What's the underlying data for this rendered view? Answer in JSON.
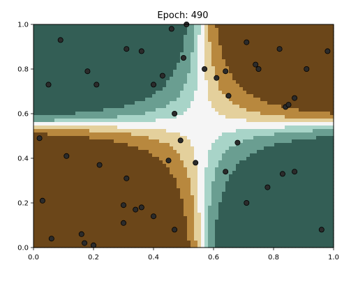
{
  "chart_data": {
    "type": "scatter",
    "title": "Epoch: 490",
    "xlabel": "",
    "ylabel": "",
    "xlim": [
      0.0,
      1.0
    ],
    "ylim": [
      0.0,
      1.0
    ],
    "grid": false,
    "x_ticks": [
      {
        "value": 0.0,
        "label": "0.0"
      },
      {
        "value": 0.2,
        "label": "0.2"
      },
      {
        "value": 0.4,
        "label": "0.4"
      },
      {
        "value": 0.6,
        "label": "0.6"
      },
      {
        "value": 0.8,
        "label": "0.8"
      },
      {
        "value": 1.0,
        "label": "1.0"
      }
    ],
    "y_ticks": [
      {
        "value": 0.0,
        "label": "0.0"
      },
      {
        "value": 0.2,
        "label": "0.2"
      },
      {
        "value": 0.4,
        "label": "0.4"
      },
      {
        "value": 0.6,
        "label": "0.6"
      },
      {
        "value": 0.8,
        "label": "0.8"
      },
      {
        "value": 1.0,
        "label": "1.0"
      }
    ],
    "decision_surface": {
      "colormap_low": "#335e55",
      "colormap_high": "#6b4619",
      "boundary_center": [
        0.56,
        0.55
      ],
      "description_levels": [
        "#335e55",
        "#6a9e91",
        "#a8d4c8",
        "#f5f5f5",
        "#e4d09c",
        "#b8883e",
        "#6b4619"
      ]
    },
    "points": {
      "marker_color": "#2b2b2b",
      "marker_edge": "#000000",
      "x": [
        0.09,
        0.31,
        0.36,
        0.46,
        0.51,
        0.18,
        0.21,
        0.05,
        0.4,
        0.43,
        0.5,
        0.57,
        0.61,
        0.64,
        0.65,
        0.71,
        0.74,
        0.75,
        0.82,
        0.91,
        0.98,
        0.84,
        0.85,
        0.87,
        0.47,
        0.49,
        0.02,
        0.11,
        0.22,
        0.45,
        0.54,
        0.68,
        0.31,
        0.64,
        0.83,
        0.87,
        0.78,
        0.03,
        0.3,
        0.34,
        0.36,
        0.4,
        0.71,
        0.3,
        0.47,
        0.16,
        0.17,
        0.2,
        0.06,
        0.96
      ],
      "y": [
        0.93,
        0.89,
        0.88,
        0.98,
        1.0,
        0.79,
        0.73,
        0.73,
        0.73,
        0.77,
        0.85,
        0.8,
        0.76,
        0.79,
        0.68,
        0.92,
        0.82,
        0.8,
        0.89,
        0.8,
        0.88,
        0.63,
        0.64,
        0.67,
        0.6,
        0.48,
        0.49,
        0.41,
        0.37,
        0.39,
        0.38,
        0.47,
        0.31,
        0.34,
        0.33,
        0.34,
        0.27,
        0.21,
        0.19,
        0.17,
        0.18,
        0.14,
        0.2,
        0.11,
        0.08,
        0.06,
        0.02,
        0.01,
        0.04,
        0.08
      ]
    }
  }
}
